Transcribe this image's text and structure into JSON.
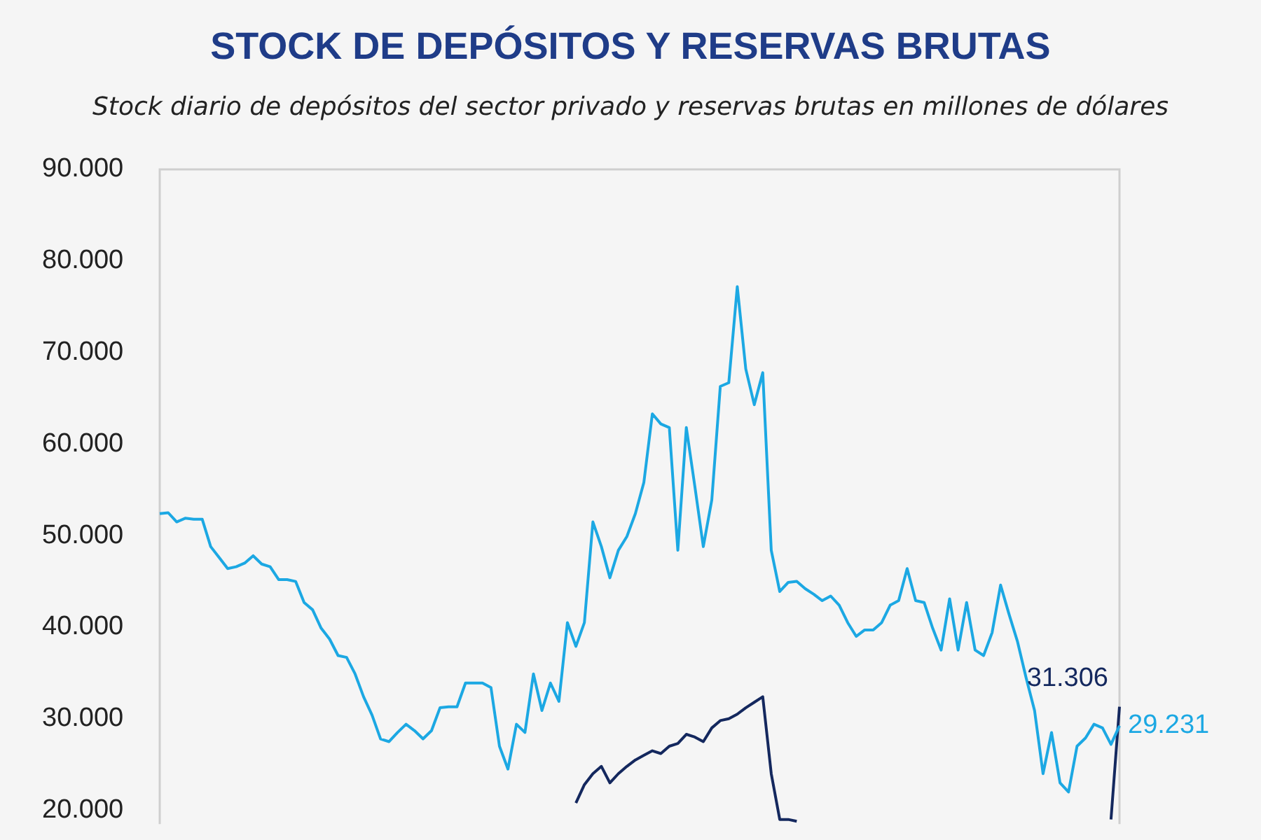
{
  "chart_data": {
    "type": "line",
    "title": "STOCK DE DEPÓSITOS Y RESERVAS BRUTAS",
    "subtitle": "Stock diario de depósitos del sector privado y reservas brutas en millones de dólares",
    "categories": [
      null,
      null,
      null,
      null,
      null,
      null,
      null,
      null,
      null,
      null,
      null,
      null,
      null,
      null,
      null,
      null,
      null,
      null,
      null,
      null,
      null,
      null,
      null,
      null,
      null,
      null,
      null,
      null,
      null,
      null,
      null,
      null,
      null,
      null,
      null,
      null,
      null,
      null,
      null,
      null,
      null,
      null,
      null,
      null,
      null,
      null,
      null,
      null,
      null,
      null,
      null,
      null,
      null,
      null,
      null,
      null,
      null,
      null,
      null,
      null,
      null,
      null,
      null,
      null,
      null,
      null,
      null,
      null,
      null,
      null,
      null,
      null,
      null,
      null,
      null,
      null,
      null,
      null,
      null,
      null,
      null,
      null,
      null,
      null,
      null,
      null,
      null,
      null,
      null,
      null,
      null,
      null,
      null,
      null,
      null,
      null,
      null,
      null,
      null,
      null,
      null,
      null,
      null,
      null,
      null,
      null,
      null,
      null,
      null,
      null,
      null,
      null,
      null,
      null
    ],
    "series": [
      {
        "color": "#1ca8e3",
        "values": [
          52400,
          52500,
          51500,
          51900,
          51800,
          51800,
          48800,
          47600,
          46400,
          46600,
          47000,
          47800,
          46900,
          46600,
          45200,
          45200,
          45000,
          42700,
          41900,
          39900,
          38700,
          36900,
          36700,
          34900,
          32400,
          30400,
          27800,
          27500,
          28500,
          29400,
          28700,
          27800,
          28700,
          31200,
          31300,
          31300,
          33900,
          33900,
          33900,
          33400,
          27000,
          24500,
          29400,
          28500,
          34900,
          30900,
          33900,
          31900,
          40500,
          37900,
          40500,
          51500,
          48800,
          45400,
          48400,
          49900,
          52400,
          55800,
          63300,
          62200,
          61800,
          48400,
          61800,
          55400,
          48800,
          53900,
          66300,
          66700,
          77200,
          68200,
          64300,
          67800,
          48400,
          43900,
          44900,
          45000,
          44200,
          43600,
          42900,
          43400,
          42400,
          40500,
          39000,
          39700,
          39700,
          40500,
          42400,
          42900,
          46400,
          42900,
          42700,
          39900,
          37500,
          43100,
          37500,
          42700,
          37500,
          36900,
          39400,
          44600,
          41400,
          38400,
          34500,
          30900,
          24000,
          28500,
          23000,
          22000,
          27000,
          27900,
          29400,
          29000,
          27200,
          29231
        ],
        "value_labels": [
          null,
          null,
          null,
          null,
          null,
          null,
          null,
          null,
          null,
          null,
          null,
          null,
          null,
          null,
          null,
          null,
          null,
          null,
          null,
          null,
          null,
          null,
          null,
          null,
          null,
          null,
          null,
          null,
          null,
          null,
          null,
          null,
          null,
          null,
          null,
          null,
          null,
          null,
          null,
          null,
          null,
          null,
          null,
          null,
          null,
          null,
          null,
          null,
          null,
          null,
          null,
          null,
          null,
          null,
          null,
          null,
          null,
          null,
          null,
          null,
          null,
          null,
          null,
          null,
          null,
          null,
          null,
          null,
          null,
          null,
          null,
          null,
          null,
          null,
          null,
          null,
          null,
          null,
          null,
          null,
          null,
          null,
          null,
          null,
          null,
          null,
          null,
          null,
          null,
          null,
          null,
          null,
          null,
          null,
          null,
          null,
          null,
          null,
          null,
          null,
          null,
          null,
          null,
          null,
          null,
          null,
          null,
          null,
          null,
          null,
          null,
          null,
          null,
          "29.231"
        ]
      },
      {
        "color": "#14285e",
        "values": [
          null,
          null,
          null,
          null,
          null,
          null,
          null,
          null,
          null,
          null,
          null,
          null,
          null,
          null,
          null,
          null,
          null,
          null,
          null,
          null,
          null,
          null,
          null,
          null,
          null,
          null,
          null,
          null,
          null,
          null,
          null,
          null,
          null,
          null,
          null,
          null,
          null,
          null,
          null,
          null,
          null,
          null,
          null,
          null,
          null,
          null,
          null,
          null,
          null,
          20800,
          22800,
          24000,
          24800,
          23000,
          24000,
          24800,
          25500,
          26000,
          26500,
          26200,
          27000,
          27300,
          28300,
          28000,
          27500,
          29000,
          29800,
          30000,
          30500,
          31200,
          31800,
          32400,
          24000,
          19000,
          19000,
          18800,
          null,
          null,
          null,
          null,
          null,
          null,
          null,
          null,
          null,
          null,
          null,
          null,
          null,
          null,
          null,
          null,
          null,
          null,
          null,
          null,
          null,
          null,
          null,
          null,
          null,
          null,
          null,
          null,
          null,
          null,
          null,
          null,
          null,
          null,
          null,
          null,
          19000,
          31306
        ],
        "value_labels": [
          null,
          null,
          null,
          null,
          null,
          null,
          null,
          null,
          null,
          null,
          null,
          null,
          null,
          null,
          null,
          null,
          null,
          null,
          null,
          null,
          null,
          null,
          null,
          null,
          null,
          null,
          null,
          null,
          null,
          null,
          null,
          null,
          null,
          null,
          null,
          null,
          null,
          null,
          null,
          null,
          null,
          null,
          null,
          null,
          null,
          null,
          null,
          null,
          null,
          null,
          null,
          null,
          null,
          null,
          null,
          null,
          null,
          null,
          null,
          null,
          null,
          null,
          null,
          null,
          null,
          null,
          null,
          null,
          null,
          null,
          null,
          null,
          null,
          null,
          null,
          null,
          null,
          null,
          null,
          null,
          null,
          null,
          null,
          null,
          null,
          null,
          null,
          null,
          null,
          null,
          null,
          null,
          null,
          null,
          null,
          null,
          null,
          null,
          null,
          null,
          null,
          null,
          null,
          null,
          null,
          null,
          null,
          null,
          null,
          null,
          null,
          null,
          null,
          "31.306"
        ]
      }
    ],
    "ylim": [
      18500,
      90000
    ],
    "yticks": [
      {
        "value": 20000,
        "label": "20.000"
      },
      {
        "value": 30000,
        "label": "30.000"
      },
      {
        "value": 40000,
        "label": "40.000"
      },
      {
        "value": 50000,
        "label": "50.000"
      },
      {
        "value": 60000,
        "label": "60.000"
      },
      {
        "value": 70000,
        "label": "70.000"
      },
      {
        "value": 80000,
        "label": "80.000"
      },
      {
        "value": 90000,
        "label": "90.000"
      }
    ],
    "tick_labels": "y"
  }
}
